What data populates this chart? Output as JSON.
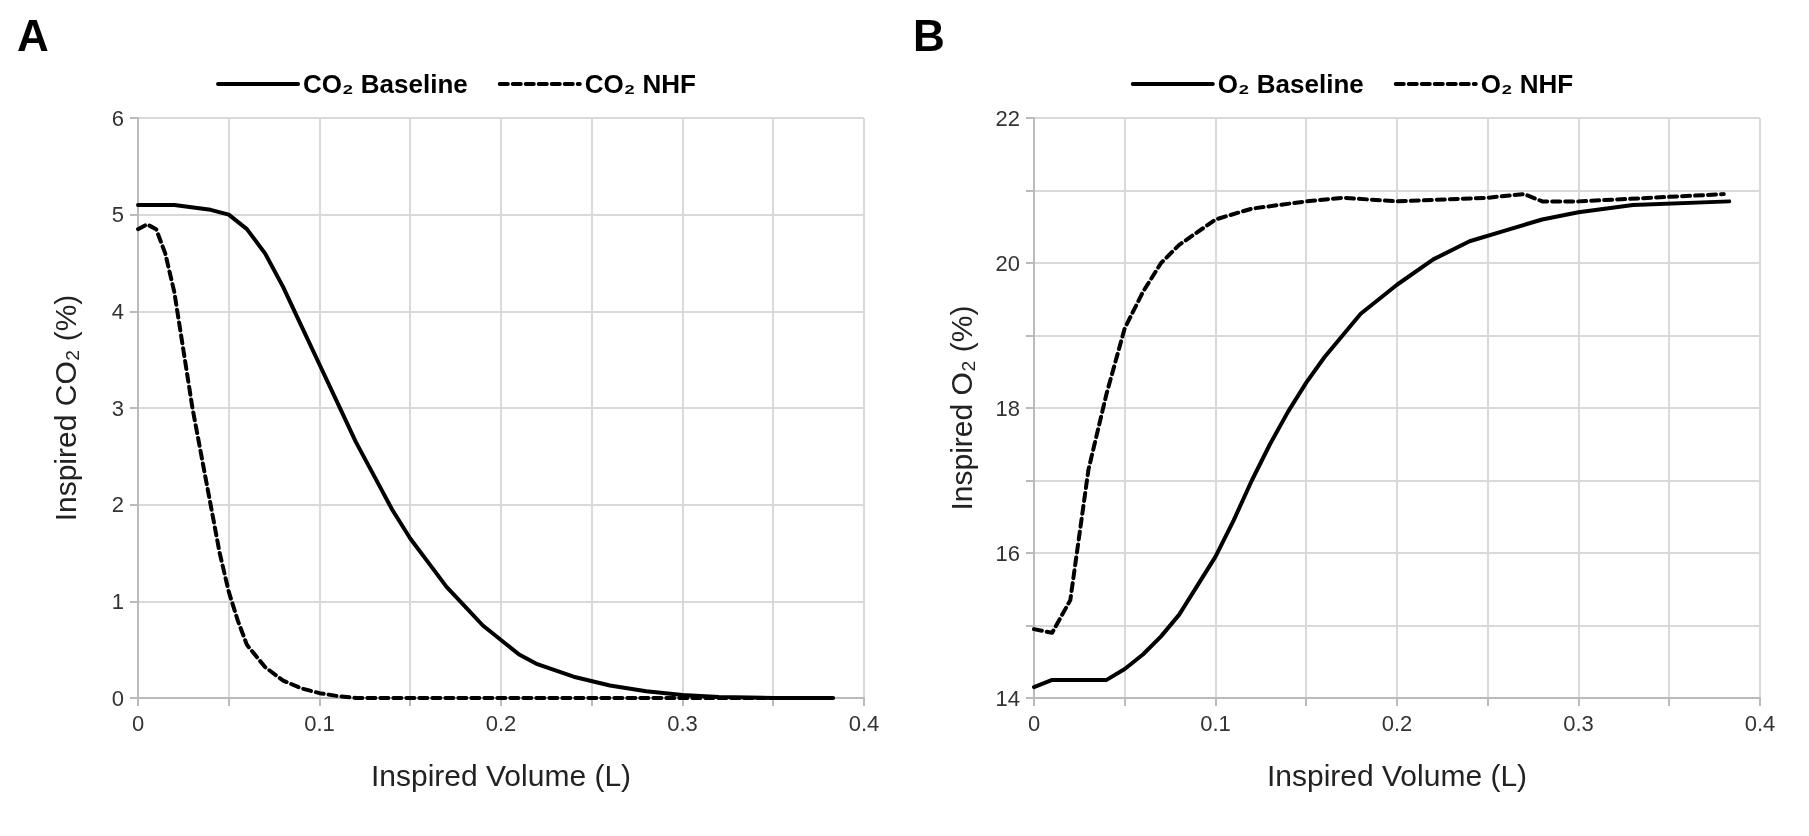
{
  "chart_data": [
    {
      "type": "line",
      "title": "A",
      "xlabel": "Inspired Volume (L)",
      "ylabel": "Inspired CO₂ (%)",
      "xlim": [
        0,
        0.4
      ],
      "ylim": [
        0,
        6
      ],
      "xticks": [
        0,
        {
          "value": 0.05,
          "label": null
        },
        0.1,
        {
          "value": 0.15,
          "label": null
        },
        0.2,
        {
          "value": 0.25,
          "label": null
        },
        0.3,
        {
          "value": 0.35,
          "label": null
        },
        0.4
      ],
      "yticks": [
        0,
        1,
        2,
        3,
        4,
        5,
        6
      ],
      "grid": true,
      "legend": "top",
      "marker": "none",
      "series": [
        {
          "name": "CO₂ Baseline",
          "color": "#000000",
          "line_style": "solid",
          "x": [
            0,
            0.02,
            0.04,
            0.05,
            0.06,
            0.07,
            0.08,
            0.09,
            0.1,
            0.11,
            0.12,
            0.13,
            0.14,
            0.15,
            0.16,
            0.17,
            0.18,
            0.19,
            0.2,
            0.21,
            0.22,
            0.24,
            0.26,
            0.28,
            0.3,
            0.32,
            0.35,
            0.383
          ],
          "values": [
            5.1,
            5.1,
            5.05,
            5.0,
            4.85,
            4.6,
            4.25,
            3.85,
            3.45,
            3.05,
            2.65,
            2.3,
            1.95,
            1.65,
            1.4,
            1.15,
            0.95,
            0.75,
            0.6,
            0.45,
            0.35,
            0.22,
            0.13,
            0.07,
            0.03,
            0.01,
            0,
            0
          ]
        },
        {
          "name": "CO₂ NHF",
          "color": "#000000",
          "line_style": "dashed",
          "x": [
            0,
            0.005,
            0.01,
            0.015,
            0.02,
            0.025,
            0.03,
            0.035,
            0.04,
            0.045,
            0.05,
            0.055,
            0.06,
            0.07,
            0.08,
            0.09,
            0.1,
            0.11,
            0.12,
            0.2,
            0.3,
            0.383
          ],
          "values": [
            4.85,
            4.9,
            4.85,
            4.6,
            4.2,
            3.6,
            3.0,
            2.5,
            2.0,
            1.5,
            1.1,
            0.8,
            0.55,
            0.32,
            0.18,
            0.1,
            0.05,
            0.02,
            0,
            0,
            0,
            0
          ]
        }
      ]
    },
    {
      "type": "line",
      "title": "B",
      "xlabel": "Inspired Volume (L)",
      "ylabel": "Inspired O₂ (%)",
      "xlim": [
        0,
        0.4
      ],
      "ylim": [
        14,
        22
      ],
      "xticks": [
        0,
        {
          "value": 0.05,
          "label": null
        },
        0.1,
        {
          "value": 0.15,
          "label": null
        },
        0.2,
        {
          "value": 0.25,
          "label": null
        },
        0.3,
        {
          "value": 0.35,
          "label": null
        },
        0.4
      ],
      "yticks": [
        14,
        {
          "value": 15,
          "label": null
        },
        16,
        {
          "value": 17,
          "label": null
        },
        18,
        {
          "value": 19,
          "label": null
        },
        20,
        {
          "value": 21,
          "label": null
        },
        22
      ],
      "grid": true,
      "legend": "top",
      "marker": "none",
      "series": [
        {
          "name": "O₂ Baseline",
          "color": "#000000",
          "line_style": "solid",
          "x": [
            0,
            0.01,
            0.04,
            0.05,
            0.06,
            0.07,
            0.08,
            0.09,
            0.1,
            0.11,
            0.12,
            0.13,
            0.14,
            0.15,
            0.16,
            0.17,
            0.18,
            0.19,
            0.2,
            0.22,
            0.24,
            0.26,
            0.28,
            0.3,
            0.33,
            0.383
          ],
          "values": [
            14.15,
            14.25,
            14.25,
            14.4,
            14.6,
            14.85,
            15.15,
            15.55,
            15.95,
            16.45,
            17.0,
            17.5,
            17.95,
            18.35,
            18.7,
            19.0,
            19.3,
            19.5,
            19.7,
            20.05,
            20.3,
            20.45,
            20.6,
            20.7,
            20.8,
            20.85
          ]
        },
        {
          "name": "O₂ NHF",
          "color": "#000000",
          "line_style": "dashed",
          "x": [
            0,
            0.01,
            0.02,
            0.03,
            0.04,
            0.05,
            0.06,
            0.07,
            0.08,
            0.1,
            0.12,
            0.15,
            0.17,
            0.2,
            0.25,
            0.27,
            0.28,
            0.3,
            0.38
          ],
          "values": [
            14.95,
            14.9,
            15.35,
            17.15,
            18.2,
            19.1,
            19.6,
            20.0,
            20.25,
            20.6,
            20.75,
            20.85,
            20.9,
            20.85,
            20.9,
            20.95,
            20.85,
            20.85,
            20.95
          ]
        }
      ]
    }
  ]
}
